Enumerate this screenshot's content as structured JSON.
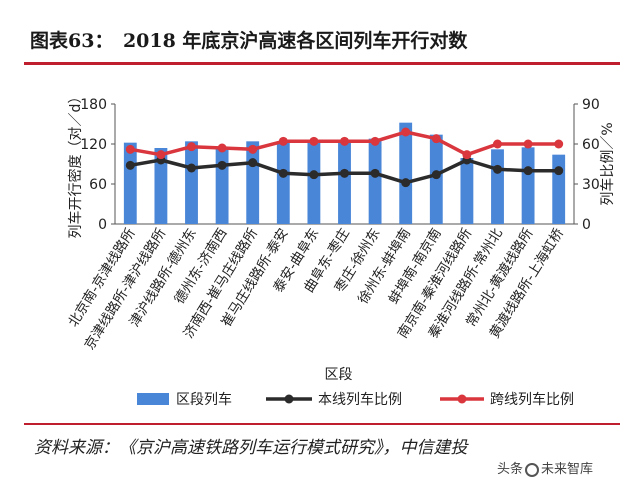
{
  "header": {
    "title": "图表63：　2018 年底京沪高速各区间列车开行对数"
  },
  "chart_data": {
    "type": "bar+line",
    "categories": [
      "北京南-京津线路所",
      "京津线路所-津沪线路所",
      "津沪线路所-德州东",
      "德州东-济南西",
      "济南西-崔马庄线路所",
      "崔马庄线路所-泰安",
      "泰安-曲阜东",
      "曲阜东-枣庄",
      "枣庄-徐州东",
      "徐州东-蚌埠南",
      "蚌埠南-南京南",
      "南京南-秦淮河线路所",
      "秦淮河线路所-常州北",
      "常州北-黄渡线路所",
      "黄渡线路所-上海虹桥"
    ],
    "xlabel": "区段",
    "ylabel_left": "列车开行密度（对／d）",
    "ylabel_right": "列车比例／%",
    "ylim_left": [
      0,
      180
    ],
    "yticks_left": [
      "0",
      "60",
      "120",
      "180"
    ],
    "ylim_right": [
      0,
      90
    ],
    "yticks_right": [
      "0",
      "30",
      "60",
      "90"
    ],
    "series": [
      {
        "name": "区段列车",
        "type": "bar",
        "axis": "left",
        "color": "#4a86d8",
        "values": [
          122,
          114,
          124,
          114,
          124,
          124,
          124,
          125,
          128,
          152,
          134,
          99,
          112,
          115,
          104
        ]
      },
      {
        "name": "本线列车比例",
        "type": "line",
        "axis": "right",
        "color": "#2b2b2b",
        "values": [
          44,
          48,
          42,
          44,
          46,
          38,
          37,
          38,
          38,
          31,
          37,
          48,
          41,
          40,
          40
        ]
      },
      {
        "name": "跨线列车比例",
        "type": "line",
        "axis": "right",
        "color": "#d9363e",
        "values": [
          56,
          52,
          58,
          57,
          56,
          62,
          62,
          62,
          62,
          69,
          64,
          52,
          60,
          60,
          60
        ]
      }
    ],
    "legend": "bottom"
  },
  "footer": {
    "source": "资料来源：《京沪高速铁路列车运行模式研究》，中信建投",
    "watermark_prefix": "头条",
    "watermark_name": "未来智库"
  }
}
